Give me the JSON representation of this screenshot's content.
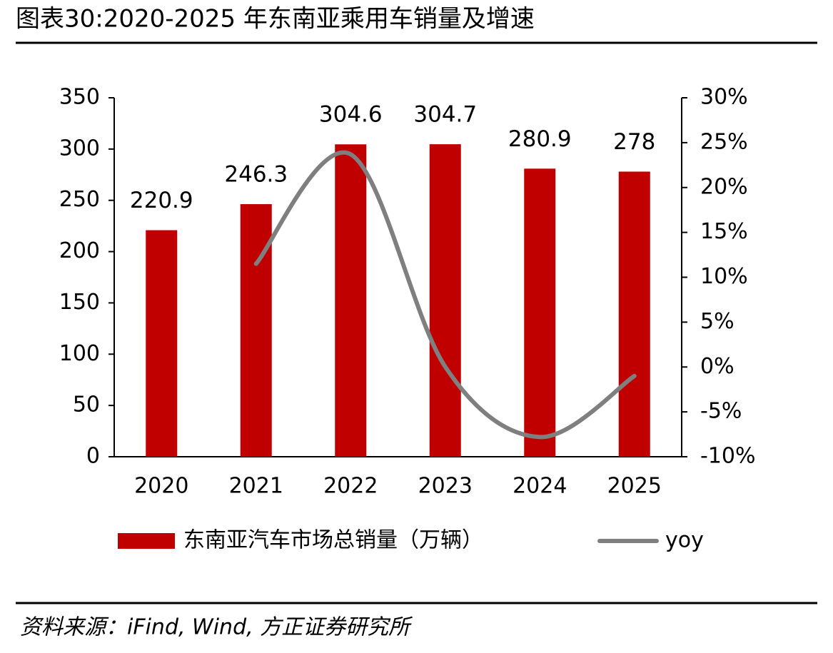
{
  "chart_data": {
    "type": "bar-line",
    "title": "图表30:2020-2025 年东南亚乘用车销量及增速",
    "categories": [
      "2020",
      "2021",
      "2022",
      "2023",
      "2024",
      "2025"
    ],
    "series": [
      {
        "name": "东南亚汽车市场总销量（万辆）",
        "type": "bar",
        "color": "#c00000",
        "values": [
          220.9,
          246.3,
          304.6,
          304.7,
          280.9,
          278
        ]
      },
      {
        "name": "yoy",
        "type": "line",
        "axis": "y2",
        "color": "#7f7f7f",
        "smooth": true,
        "values": [
          null,
          11.5,
          23.7,
          0.03,
          -7.8,
          -1.0
        ]
      }
    ],
    "ylim": [
      0,
      350
    ],
    "yticks": [
      0,
      50,
      100,
      150,
      200,
      250,
      300,
      350
    ],
    "y2lim": [
      -10,
      30
    ],
    "y2ticks": [
      {
        "value": -10,
        "label": "-10%"
      },
      {
        "value": -5,
        "label": "-5%"
      },
      {
        "value": 0,
        "label": "0%"
      },
      {
        "value": 5,
        "label": "5%"
      },
      {
        "value": 10,
        "label": "10%"
      },
      {
        "value": 15,
        "label": "15%"
      },
      {
        "value": 20,
        "label": "20%"
      },
      {
        "value": 25,
        "label": "25%"
      },
      {
        "value": 30,
        "label": "30%"
      }
    ],
    "legend": "bottom",
    "source": "资料来源：iFind, Wind, 方正证券研究所"
  }
}
